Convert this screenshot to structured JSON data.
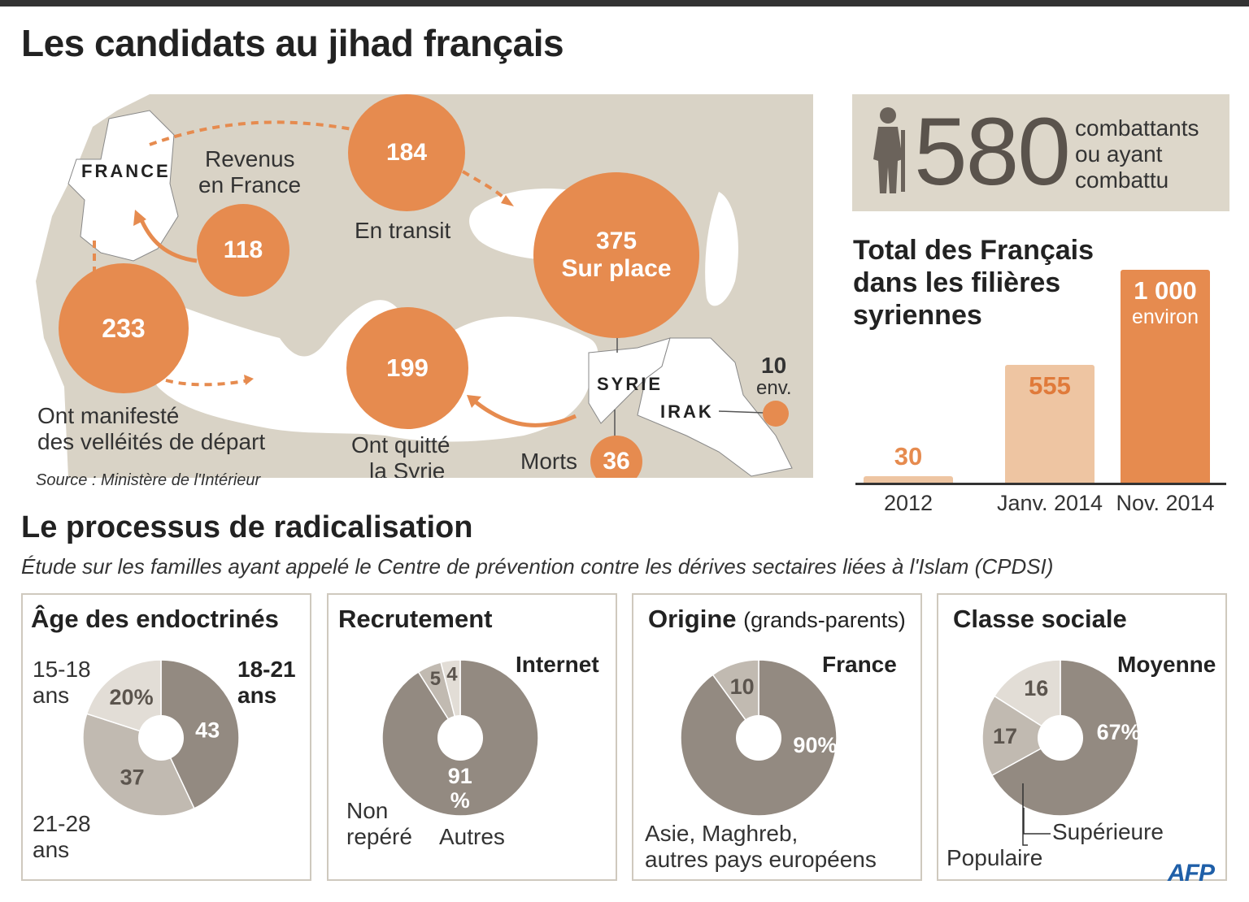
{
  "title": "Les candidats au jihad français",
  "map": {
    "source": "Source : Ministère de l'Intérieur",
    "countries": {
      "france": "FRANCE",
      "syria": "SYRIE",
      "iraq": "IRAK"
    },
    "stages": [
      {
        "value": "233",
        "label_line1": "Ont manifesté",
        "label_line2": "des velléités de départ"
      },
      {
        "value": "118",
        "label_line1": "Revenus",
        "label_line2": "en France"
      },
      {
        "value": "184",
        "label_line1": "En transit",
        "label_line2": ""
      },
      {
        "value": "375",
        "label_line1": "Sur place",
        "label_line2": ""
      },
      {
        "value": "199",
        "label_line1": "Ont quitté",
        "label_line2": "la Syrie"
      },
      {
        "value": "36",
        "label_line1": "Morts",
        "label_line2": ""
      },
      {
        "value": "10",
        "label_line1": "env.",
        "label_line2": ""
      }
    ],
    "colors": {
      "sea": "#ffffff",
      "land": "#d9d3c6",
      "accent": "#e68b4f"
    }
  },
  "combatants": {
    "value": "580",
    "text_line1": "combattants",
    "text_line2": "ou ayant",
    "text_line3": "combattu",
    "icon": "soldier-icon"
  },
  "chart_data": [
    {
      "type": "bar",
      "title": "Total des Français dans les filières syriennes",
      "categories": [
        "2012",
        "Janv. 2014",
        "Nov. 2014"
      ],
      "values": [
        30,
        555,
        1000
      ],
      "value_labels": [
        "30",
        "555",
        "1 000"
      ],
      "value_sublabels": [
        "",
        "",
        "environ"
      ],
      "colors": [
        "#eec5a2",
        "#eec5a2",
        "#e68b4f"
      ],
      "ylim": [
        0,
        1000
      ]
    },
    {
      "type": "pie",
      "title": "Âge des endoctrinés",
      "categories": [
        "18-21 ans",
        "21-28 ans",
        "15-18 ans"
      ],
      "values": [
        43,
        37,
        20
      ],
      "value_labels": [
        "43",
        "37",
        "20%"
      ],
      "colors": [
        "#938a81",
        "#c1bab1",
        "#e2ddd6"
      ]
    },
    {
      "type": "pie",
      "title": "Recrutement",
      "categories": [
        "Internet",
        "Autres",
        "Non repéré"
      ],
      "values": [
        91,
        5,
        4
      ],
      "value_labels": [
        "91 %",
        "5",
        "4"
      ],
      "colors": [
        "#938a81",
        "#c1bab1",
        "#e2ddd6"
      ]
    },
    {
      "type": "pie",
      "title": "Origine",
      "title_note": "(grands-parents)",
      "categories": [
        "France",
        "Asie, Maghreb, autres pays européens"
      ],
      "values": [
        90,
        10
      ],
      "value_labels": [
        "90%",
        "10"
      ],
      "colors": [
        "#938a81",
        "#c1bab1"
      ]
    },
    {
      "type": "pie",
      "title": "Classe sociale",
      "categories": [
        "Moyenne",
        "Supérieure",
        "Populaire"
      ],
      "values": [
        67,
        17,
        16
      ],
      "value_labels": [
        "67%",
        "17",
        "16"
      ],
      "colors": [
        "#938a81",
        "#c1bab1",
        "#e2ddd6"
      ]
    }
  ],
  "section": {
    "title": "Le processus de radicalisation",
    "subtitle": "Étude sur les familles ayant appelé le Centre de prévention contre les dérives sectaires liées à l'Islam (CPDSI)"
  },
  "panels": {
    "age": {
      "label_a1": "15-18",
      "label_a2": "ans",
      "label_b1": "18-21",
      "label_b2": "ans",
      "label_c1": "21-28",
      "label_c2": "ans"
    },
    "recr": {
      "label_internet": "Internet",
      "label_non1": "Non",
      "label_non2": "repéré",
      "label_autres": "Autres"
    },
    "orig": {
      "label_france": "France",
      "label_other1": "Asie, Maghreb,",
      "label_other2": "autres pays européens"
    },
    "classe": {
      "label_moyenne": "Moyenne",
      "label_sup": "Supérieure",
      "label_pop": "Populaire"
    }
  },
  "logo": "AFP"
}
